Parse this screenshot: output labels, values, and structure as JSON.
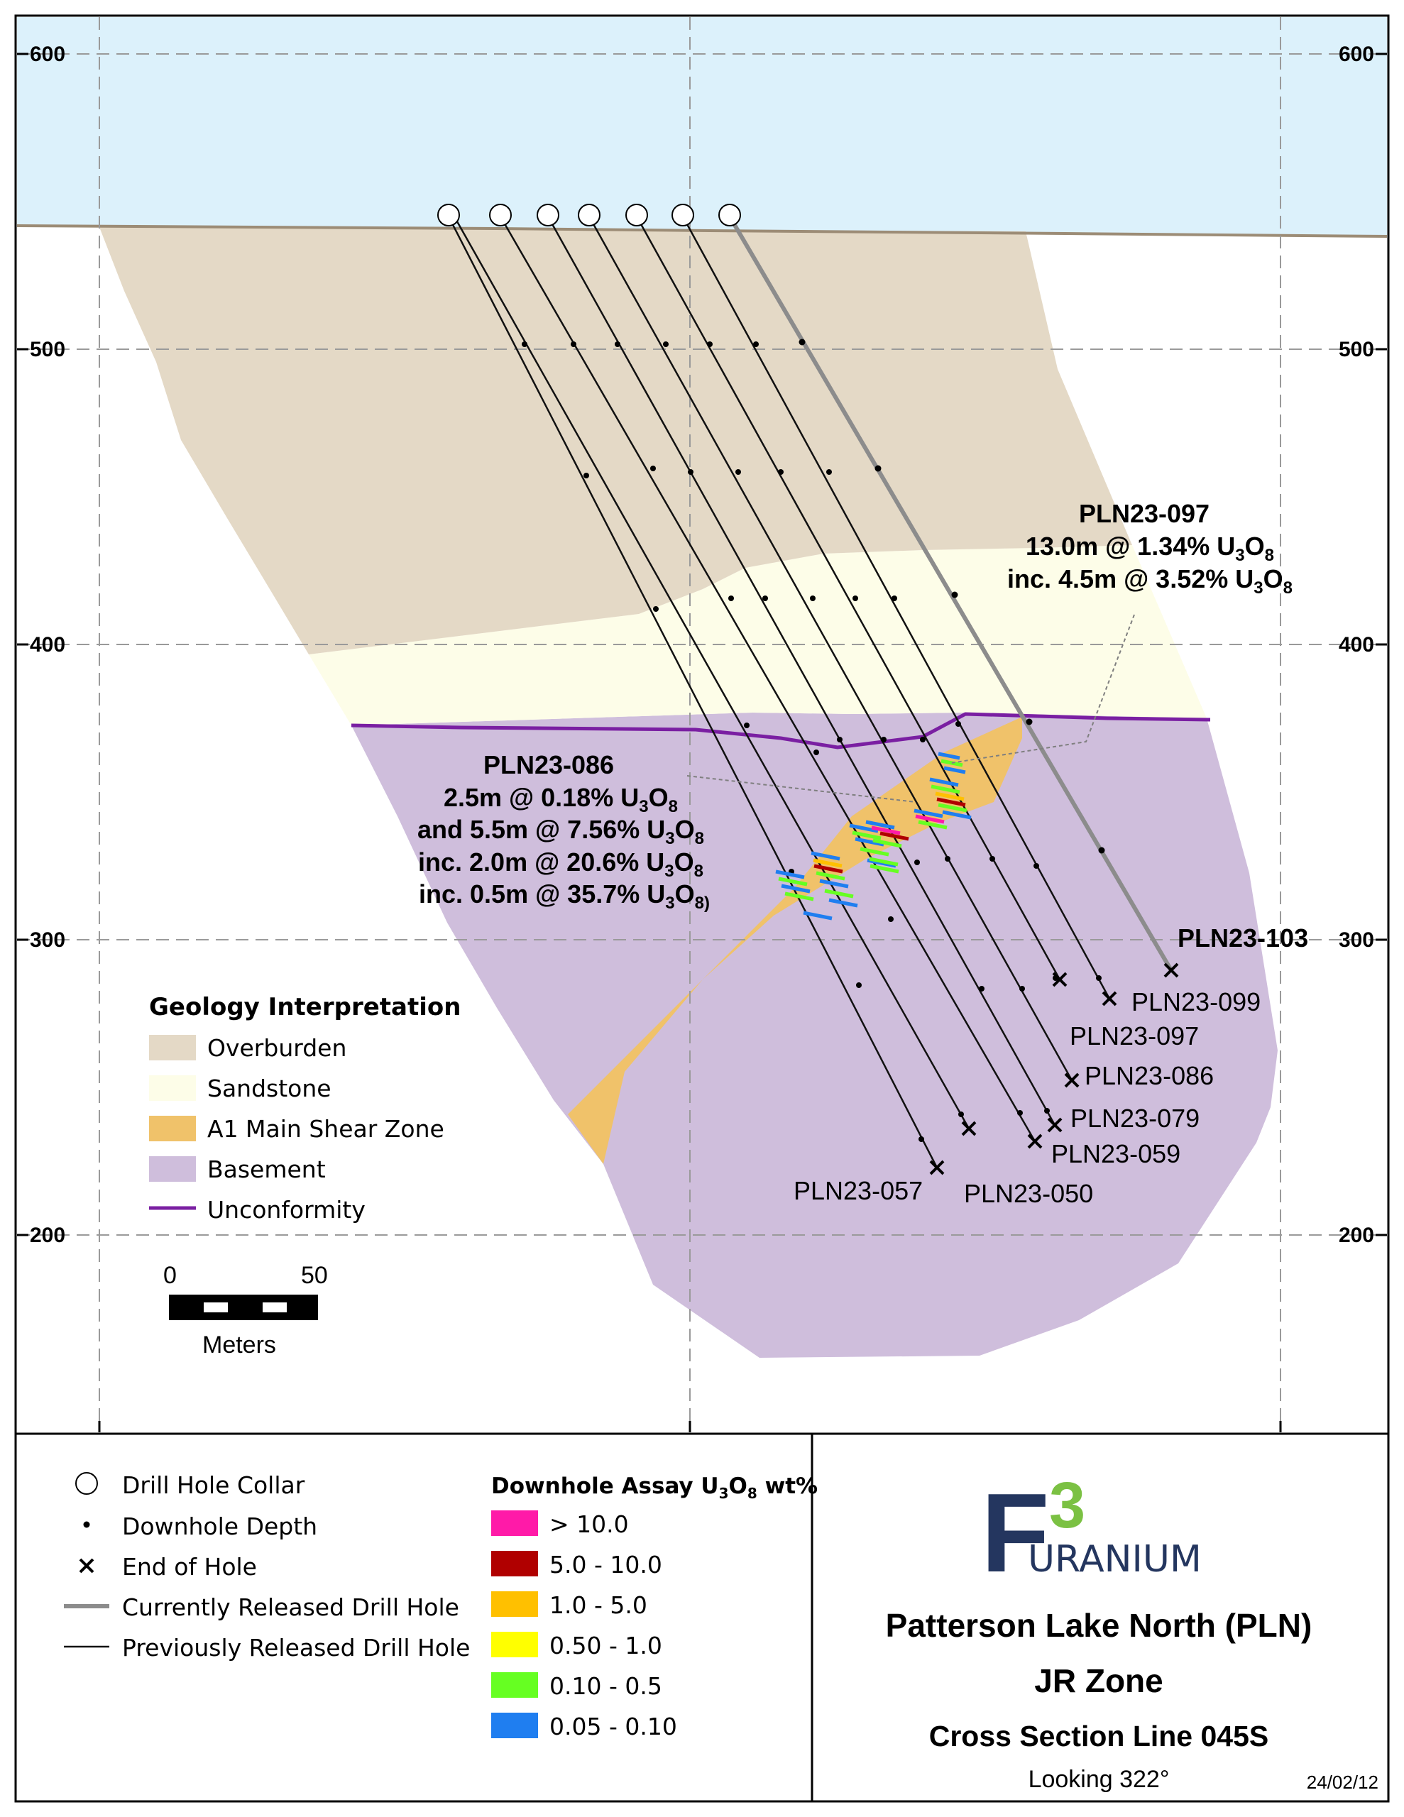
{
  "axis": {
    "elevations": [
      "600",
      "500",
      "400",
      "300",
      "200"
    ]
  },
  "annotations": {
    "pln097": {
      "title": "PLN23-097",
      "line1": "13.0m @ 1.34% U",
      "line1_sub": "3",
      "line1_tail": "O",
      "line1_sub2": "8",
      "line2": "inc. 4.5m @ 3.52% U",
      "line2_sub": "3",
      "line2_tail": "O",
      "line2_sub2": "8"
    },
    "pln086": {
      "title": "PLN23-086",
      "line1": "2.5m @ 0.18% U",
      "line2": "and 5.5m @ 7.56% U",
      "line3": "inc. 2.0m @ 20.6% U",
      "line4": "inc. 0.5m @ 35.7% U",
      "sub3": "3",
      "o": "O",
      "sub8": "8",
      "sub8_close": "8)"
    },
    "pln103": "PLN23-103"
  },
  "hole_labels": [
    "PLN23-099",
    "PLN23-097",
    "PLN23-086",
    "PLN23-079",
    "PLN23-059",
    "PLN23-057",
    "PLN23-050"
  ],
  "geology_legend": {
    "title": "Geology Interpretation",
    "items": [
      {
        "label": "Overburden",
        "color": "#e4d9c6"
      },
      {
        "label": "Sandstone",
        "color": "#fdfde8"
      },
      {
        "label": "A1 Main Shear Zone",
        "color": "#f0c26a"
      },
      {
        "label": "Basement",
        "color": "#cfbedc"
      },
      {
        "label": "Unconformity",
        "color": "#7a1fa2"
      }
    ]
  },
  "scale_bar": {
    "zero": "0",
    "fifty": "50",
    "unit": "Meters"
  },
  "symbol_legend": {
    "items": [
      {
        "label": "Drill Hole Collar",
        "icon": "circle-icon"
      },
      {
        "label": "Downhole Depth",
        "icon": "dot-icon"
      },
      {
        "label": "End of Hole",
        "icon": "x-icon"
      },
      {
        "label": "Currently Released Drill Hole",
        "icon": "gray-line-icon"
      },
      {
        "label": "Previously Released Drill Hole",
        "icon": "black-line-icon"
      }
    ]
  },
  "assay_legend": {
    "title": "Downhole Assay  U",
    "title_sub": "3",
    "title_o": "O",
    "title_sub2": "8",
    "title_tail": " wt%",
    "items": [
      {
        "label": "> 10.0",
        "color": "#ff1aa8"
      },
      {
        "label": "5.0 - 10.0",
        "color": "#b00000"
      },
      {
        "label": "1.0 - 5.0",
        "color": "#ffc000"
      },
      {
        "label": "0.50 - 1.0",
        "color": "#ffff00"
      },
      {
        "label": "0.10 - 0.5",
        "color": "#66ff22"
      },
      {
        "label": "0.05 -  0.10",
        "color": "#1f7ef0"
      }
    ]
  },
  "title_block": {
    "logo_letter": "F",
    "logo_number": "3",
    "logo_word": "URANIUM",
    "line1": "Patterson Lake North (PLN)",
    "line2": "JR Zone",
    "line3": "Cross Section Line 045S",
    "line4": "Looking 322°",
    "date": "24/02/12"
  },
  "colors": {
    "sky": "#dcf1fb",
    "overburden": "#e4d9c6",
    "sandstone": "#fdfde8",
    "shear": "#f0c26a",
    "basement": "#cfbedc",
    "unconformity": "#7a1fa2",
    "logo_navy": "#24365f",
    "logo_green": "#7bc143"
  }
}
